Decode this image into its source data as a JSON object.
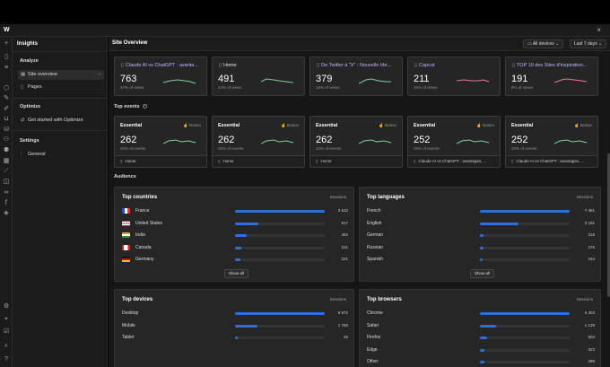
{
  "app": {
    "logo": "W",
    "close": "×"
  },
  "rail_icons": [
    "plus-icon",
    "page-icon",
    "layers-icon",
    "cube-icon",
    "brush-icon",
    "pen-icon",
    "cart-icon",
    "database-icon",
    "user-icon",
    "users-icon",
    "table-icon",
    "chart-icon",
    "box-icon",
    "link-icon",
    "f-icon",
    "components-icon",
    "gear-icon",
    "pin-icon",
    "check-icon",
    "search-icon",
    "help-icon"
  ],
  "sidebar": {
    "title": "Insights",
    "analyze": "Analyze",
    "site_overview": "Site overview",
    "pages": "Pages",
    "optimize": "Optimize",
    "get_started": "Get started with Optimize",
    "settings": "Settings",
    "general": "General"
  },
  "header": {
    "title": "Site Overview",
    "devices": "All devices",
    "range": "Last 7 days"
  },
  "page_cards": [
    {
      "title": "Claude AI vs ChatGPT : avanta...",
      "value": "763",
      "sub": "37% of views",
      "accent": "#c7b0ff",
      "spark_color": "#7fcf9a"
    },
    {
      "title": "Home",
      "value": "491",
      "sub": "24% of views",
      "accent": "#e6e6e6",
      "spark_color": "#7fcf9a"
    },
    {
      "title": "De Twitter à \"X\" : Nouvelle Ide...",
      "value": "379",
      "sub": "18% of views",
      "accent": "#c7b0ff",
      "spark_color": "#7fcf9a"
    },
    {
      "title": "Capcut",
      "value": "211",
      "sub": "10% of views",
      "accent": "#c7b0ff",
      "spark_color": "#e07f8f"
    },
    {
      "title": "TOP 10 des Sites d'inspiration...",
      "value": "191",
      "sub": "9% of views",
      "accent": "#c7b0ff",
      "spark_color": "#e07f8f"
    }
  ],
  "top_events": {
    "title": "Top events",
    "help": "?"
  },
  "event_cards": [
    {
      "name": "Essential",
      "type": "Button",
      "value": "262",
      "sub": "20% of events",
      "page": "Home"
    },
    {
      "name": "Essential",
      "type": "Button",
      "value": "262",
      "sub": "20% of events",
      "page": "Home"
    },
    {
      "name": "Essential",
      "type": "Button",
      "value": "262",
      "sub": "20% of events",
      "page": "Home"
    },
    {
      "name": "Essential",
      "type": "Button",
      "value": "252",
      "sub": "20% of events",
      "page": "Claude AI vs ChatGPT : avantages, ..."
    },
    {
      "name": "Essential",
      "type": "Button",
      "value": "252",
      "sub": "20% of events",
      "page": "Claude AI vs ChatGPT : avantages, ..."
    }
  ],
  "audience": {
    "title": "Audience"
  },
  "countries": {
    "title": "Top countries",
    "col": "Sessions",
    "show_all": "Show all",
    "rows": [
      {
        "label": "France",
        "value": "3 542",
        "frac": 1.0,
        "flag": "fr"
      },
      {
        "label": "United States",
        "value": "917",
        "frac": 0.26,
        "flag": "us"
      },
      {
        "label": "India",
        "value": "452",
        "frac": 0.13,
        "flag": "in"
      },
      {
        "label": "Canada",
        "value": "231",
        "frac": 0.065,
        "flag": "ca"
      },
      {
        "label": "Germany",
        "value": "221",
        "frac": 0.062,
        "flag": "de"
      }
    ]
  },
  "languages": {
    "title": "Top languages",
    "col": "Sessions",
    "show_all": "Show all",
    "rows": [
      {
        "label": "French",
        "value": "7 481",
        "frac": 1.0
      },
      {
        "label": "English",
        "value": "3 181",
        "frac": 0.425
      },
      {
        "label": "German",
        "value": "316",
        "frac": 0.042
      },
      {
        "label": "Russian",
        "value": "276",
        "frac": 0.037
      },
      {
        "label": "Spanish",
        "value": "154",
        "frac": 0.021
      }
    ]
  },
  "devices": {
    "title": "Top devices",
    "col": "Sessions",
    "rows": [
      {
        "label": "Desktop",
        "value": "6 972",
        "frac": 1.0
      },
      {
        "label": "Mobile",
        "value": "1 750",
        "frac": 0.25
      },
      {
        "label": "Tablet",
        "value": "45",
        "frac": 0.006
      }
    ]
  },
  "browsers": {
    "title": "Top browsers",
    "col": "Sessions",
    "rows": [
      {
        "label": "Chrome",
        "value": "6 403",
        "frac": 1.0
      },
      {
        "label": "Safari",
        "value": "1 128",
        "frac": 0.176
      },
      {
        "label": "Firefox",
        "value": "503",
        "frac": 0.079
      },
      {
        "label": "Edge",
        "value": "323",
        "frac": 0.05
      },
      {
        "label": "Other",
        "value": "298",
        "frac": 0.047
      }
    ]
  }
}
